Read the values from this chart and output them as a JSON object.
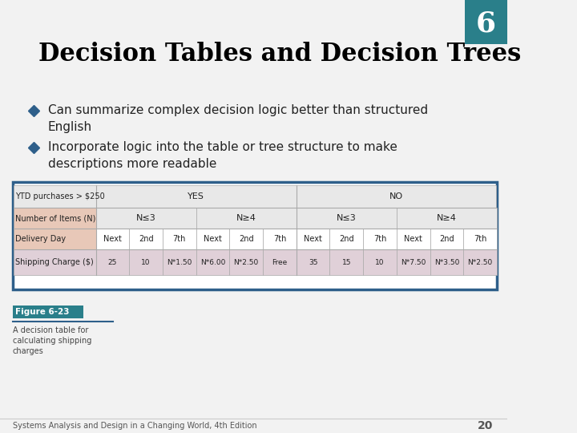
{
  "title": "Decision Tables and Decision Trees",
  "slide_number": "6",
  "slide_bg": "#f2f2f2",
  "title_color": "#000000",
  "bullet_diamond_color": "#2e5f8a",
  "bullets": [
    "Can summarize complex decision logic better than structured\nEnglish",
    "Incorporate logic into the table or tree structure to make\ndescriptions more readable"
  ],
  "table_border_color": "#2e5f8a",
  "table_header_bg": "#e8e8e8",
  "table_row_label_bg": "#e8c8b8",
  "table_shipping_bg": "#e0d0d8",
  "label_texts": [
    "YTD purchases > $250",
    "Number of Items (N)",
    "Delivery Day",
    "Shipping Charge ($)"
  ],
  "yes_no": [
    "YES",
    "NO"
  ],
  "n_labels": [
    "≤",
    "≥",
    "≤",
    "≥"
  ],
  "delivery_labels": [
    "Next",
    "2nd",
    "7th",
    "Next",
    "2nd",
    "7th",
    "Next",
    "2nd",
    "7th",
    "Next",
    "2nd",
    "7th"
  ],
  "shipping_labels": [
    "25",
    "10",
    "N*1.50",
    "N*6.00",
    "N*2.50",
    "Free",
    "35",
    "15",
    "10",
    "N*7.50",
    "N*3.50",
    "N*2.50"
  ],
  "figure_label": "Figure 6-23",
  "figure_caption": "A decision table for\ncalculating shipping\ncharges",
  "footer_text": "Systems Analysis and Design in a Changing World, 4th Edition",
  "footer_number": "20",
  "corner_box_color": "#2a7f8a",
  "corner_number_color": "#ffffff"
}
